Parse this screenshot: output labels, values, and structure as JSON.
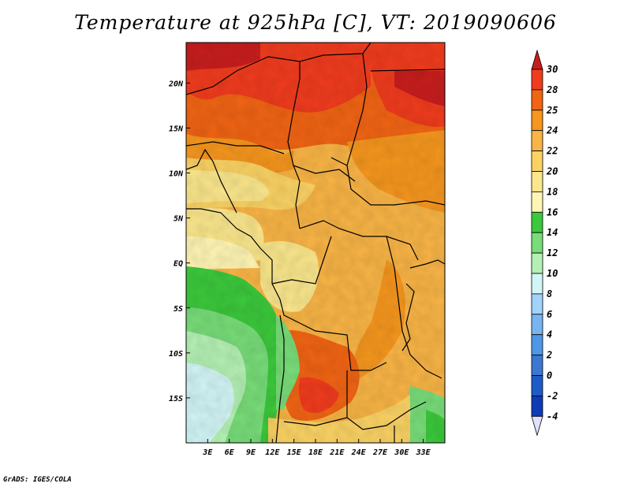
{
  "title": "Temperature at 925hPa [C], VT: 2019090606",
  "credit": "GrADS: IGES/COLA",
  "map": {
    "lon_range": [
      0,
      36
    ],
    "lat_range": [
      -20,
      24.5
    ],
    "lon_ticks": [
      {
        "value": 3,
        "label": "3E"
      },
      {
        "value": 6,
        "label": "6E"
      },
      {
        "value": 9,
        "label": "9E"
      },
      {
        "value": 12,
        "label": "12E"
      },
      {
        "value": 15,
        "label": "15E"
      },
      {
        "value": 18,
        "label": "18E"
      },
      {
        "value": 21,
        "label": "21E"
      },
      {
        "value": 24,
        "label": "24E"
      },
      {
        "value": 27,
        "label": "27E"
      },
      {
        "value": 30,
        "label": "30E"
      },
      {
        "value": 33,
        "label": "33E"
      }
    ],
    "lat_ticks": [
      {
        "value": 20,
        "label": "20N"
      },
      {
        "value": 15,
        "label": "15N"
      },
      {
        "value": 10,
        "label": "10N"
      },
      {
        "value": 5,
        "label": "5N"
      },
      {
        "value": 0,
        "label": "EQ"
      },
      {
        "value": -5,
        "label": "5S"
      },
      {
        "value": -10,
        "label": "10S"
      },
      {
        "value": -15,
        "label": "15S"
      }
    ]
  },
  "colorbar": {
    "levels": [
      "30",
      "28",
      "25",
      "24",
      "22",
      "20",
      "18",
      "16",
      "14",
      "12",
      "10",
      "8",
      "6",
      "4",
      "2",
      "0",
      "-2",
      "-4"
    ],
    "colors": [
      "#f03c1e",
      "#f06414",
      "#f5961e",
      "#f8b446",
      "#fad264",
      "#fae68c",
      "#fff5b4",
      "#3cc83c",
      "#78dc78",
      "#b4f0b4",
      "#d2f5f5",
      "#a0d2fa",
      "#78b4f0",
      "#5096e6",
      "#3c78d2",
      "#1e5ac8",
      "#0f3cb4",
      "#0a1e8c"
    ],
    "top_color": "#c81e1e",
    "bottom_color": "#e0e0ff"
  }
}
